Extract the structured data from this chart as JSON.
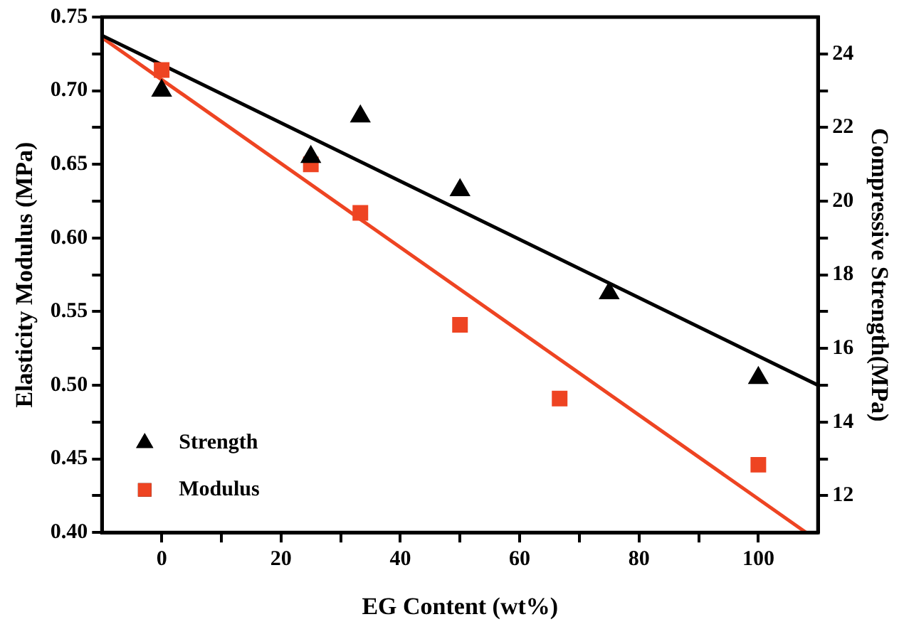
{
  "chart_data": {
    "type": "scatter",
    "xlabel": "EG Content (wt%)",
    "ylabel": "Elasticity Modulus (MPa)",
    "y2label": "Compressive Strength(MPa)",
    "xlim": [
      -10,
      110
    ],
    "xticks": [
      0,
      {
        "value": 10,
        "label": null
      },
      20,
      {
        "value": 30,
        "label": null
      },
      40,
      {
        "value": 50,
        "label": null
      },
      60,
      {
        "value": 70,
        "label": null
      },
      80,
      {
        "value": 90,
        "label": null
      },
      100
    ],
    "ylim": [
      0.4,
      0.75
    ],
    "yticks": [
      {
        "value": 0.4,
        "label": "0.40"
      },
      {
        "value": 0.425,
        "label": null
      },
      0.45,
      {
        "value": 0.475,
        "label": null
      },
      {
        "value": 0.5,
        "label": "0.50"
      },
      {
        "value": 0.525,
        "label": null
      },
      0.55,
      {
        "value": 0.575,
        "label": null
      },
      {
        "value": 0.6,
        "label": "0.60"
      },
      {
        "value": 0.625,
        "label": null
      },
      0.65,
      {
        "value": 0.675,
        "label": null
      },
      {
        "value": 0.7,
        "label": "0.70"
      },
      {
        "value": 0.725,
        "label": null
      },
      0.75
    ],
    "y2lim": [
      11,
      25
    ],
    "y2ticks": [
      12,
      {
        "value": 13,
        "label": null
      },
      14,
      {
        "value": 15,
        "label": null
      },
      16,
      {
        "value": 17,
        "label": null
      },
      18,
      {
        "value": 19,
        "label": null
      },
      20,
      {
        "value": 21,
        "label": null
      },
      22,
      {
        "value": 23,
        "label": null
      },
      24
    ],
    "legend": "bottom left",
    "series": [
      {
        "name": "Strength",
        "axis": "y2",
        "marker": "triangle",
        "color": "#000000",
        "x": [
          0,
          25,
          33.3,
          50,
          75,
          100
        ],
        "values": [
          23.0,
          21.2,
          22.3,
          20.3,
          17.5,
          15.2
        ]
      },
      {
        "name": "Modulus",
        "marker": "square",
        "color": "#ee4422",
        "x": [
          0,
          25,
          33.3,
          50,
          66.7,
          100
        ],
        "values": [
          0.714,
          0.65,
          0.617,
          0.541,
          0.491,
          0.446
        ]
      },
      {
        "type": "line",
        "axis": "y2",
        "marker": "none",
        "color": "#000000",
        "x": [
          -10,
          110
        ],
        "values": [
          24.5,
          15.0
        ]
      },
      {
        "type": "line",
        "marker": "none",
        "color": "#ee4422",
        "x": [
          -10,
          108
        ],
        "values": [
          0.736,
          0.4
        ]
      }
    ]
  }
}
